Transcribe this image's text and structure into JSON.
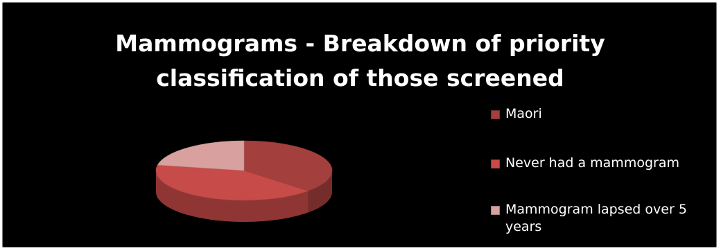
{
  "chart_data": {
    "type": "pie",
    "title": "Mammograms - Breakdown of priority classification of those screened",
    "title_lines": [
      "Mammograms - Breakdown of priority",
      "classification of those screened"
    ],
    "categories": [
      "Maori",
      "Never had a mammogram",
      "Mammogram lapsed over 5 years"
    ],
    "values": [
      37,
      41,
      22
    ],
    "value_unit": "percent",
    "colors": [
      "#a33f3c",
      "#c74b48",
      "#d9a0a0"
    ],
    "legend": "right",
    "style": "3d",
    "background": "#000000"
  }
}
